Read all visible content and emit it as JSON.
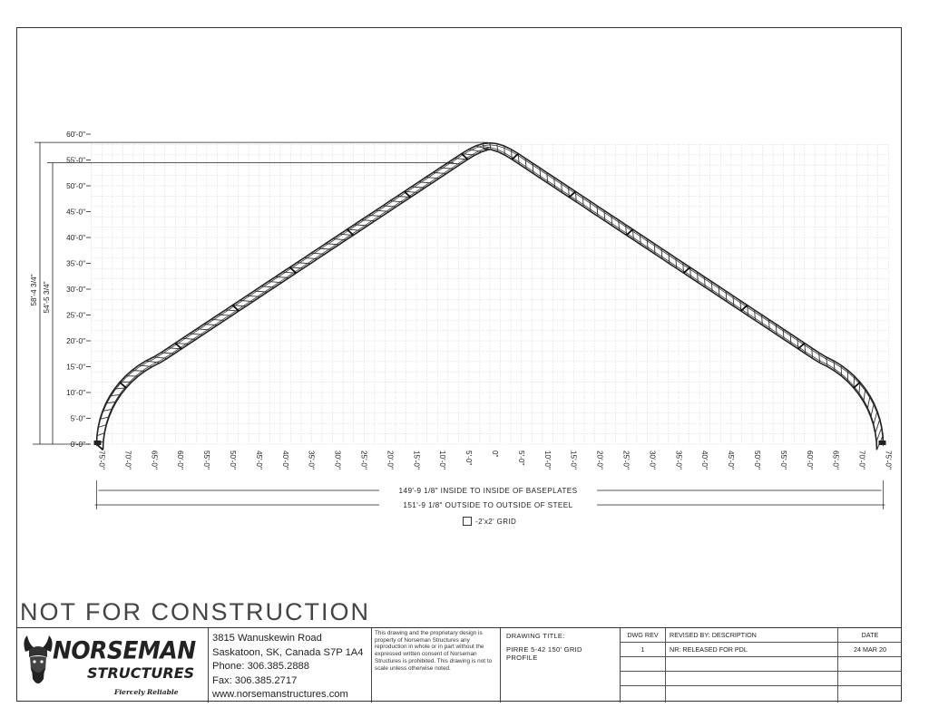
{
  "drawing": {
    "y_ticks": [
      "0'-0\"",
      "5'-0\"",
      "10'-0\"",
      "15'-0\"",
      "20'-0\"",
      "25'-0\"",
      "30'-0\"",
      "35'-0\"",
      "40'-0\"",
      "45'-0\"",
      "50'-0\"",
      "55'-0\"",
      "60'-0\""
    ],
    "x_ticks": [
      "75'-0\"",
      "70'-0\"",
      "65'-0\"",
      "60'-0\"",
      "55'-0\"",
      "50'-0\"",
      "45'-0\"",
      "40'-0\"",
      "35'-0\"",
      "30'-0\"",
      "25'-0\"",
      "20'-0\"",
      "15'-0\"",
      "10'-0\"",
      "5'-0\"",
      "0\"",
      "5'-0\"",
      "10'-0\"",
      "15'-0\"",
      "20'-0\"",
      "25'-0\"",
      "30'-0\"",
      "35'-0\"",
      "40'-0\"",
      "45'-0\"",
      "50'-0\"",
      "55'-0\"",
      "60'-0\"",
      "65'-0\"",
      "70'-0\"",
      "75'-0\""
    ],
    "dim_outer_height": "58'-4 3/4\"",
    "dim_inner_height": "54'-5 3/4\"",
    "dim_inside_width": "149'-9 1/8\" INSIDE TO INSIDE OF BASEPLATES",
    "dim_outside_width": "151'-9 1/8\" OUTSIDE TO OUTSIDE OF STEEL",
    "grid_legend": "-2'x2' GRID"
  },
  "watermark": "NOT FOR CONSTRUCTION",
  "title_block": {
    "logo_word": "NORSEMAN",
    "logo_sub": "STRUCTURES",
    "logo_tagline": "Fiercely Reliable",
    "address_line1": "3815 Wanuskewin Road",
    "address_line2": "Saskatoon, SK, Canada S7P 1A4",
    "phone": "Phone: 306.385.2888",
    "fax": "Fax: 306.385.2717",
    "website": "www.norsemanstructures.com",
    "legal": "This drawing and the proprietary design is property of Norseman Structures any reproduction in whole or in part without the expressed written consent of Norseman Structures is prohibited. This drawing is not to scale unless otherwise noted.",
    "drawing_title_label": "DRAWING TITLE:",
    "drawing_title": "PIRRE 5-42 150' GRID PROFILE",
    "rev_header": "DWG REV",
    "desc_header": "REVISED BY: DESCRIPTION",
    "date_header": "DATE",
    "rev_value": "1",
    "desc_value": "NR: RELEASED FOR PDL",
    "date_value": "24 MAR 20"
  }
}
